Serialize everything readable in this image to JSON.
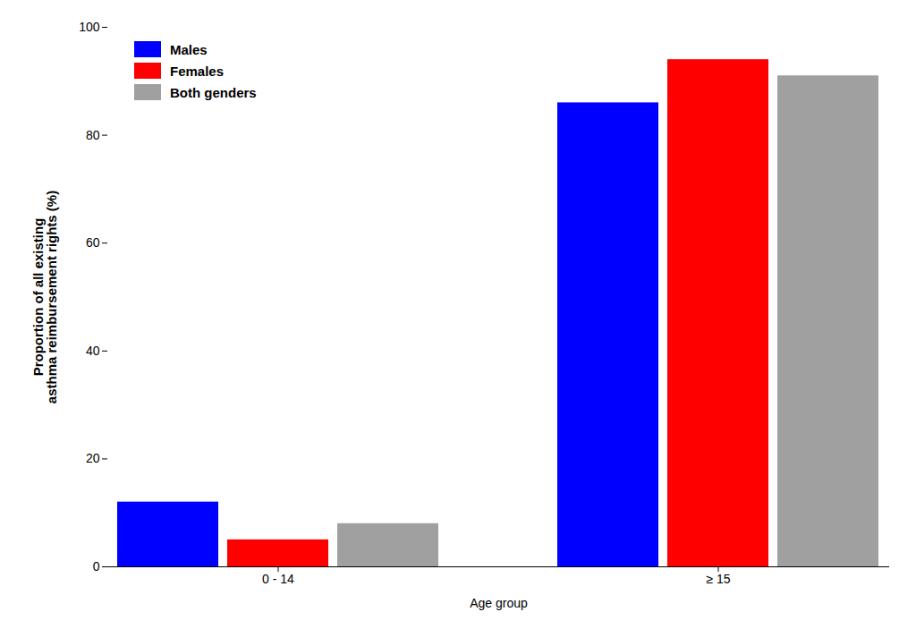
{
  "chart_data": {
    "type": "bar",
    "categories": [
      "0 - 14",
      "≥ 15"
    ],
    "series": [
      {
        "name": "Males",
        "color": "#0000FF",
        "values": [
          12,
          86
        ]
      },
      {
        "name": "Females",
        "color": "#FF0000",
        "values": [
          5,
          94
        ]
      },
      {
        "name": "Both genders",
        "color": "#A0A0A0",
        "values": [
          8,
          91
        ]
      }
    ],
    "xlabel": "Age group",
    "ylabel": "Proportion of all existing\nasthma reimbursement rights (%)",
    "ylim": [
      0,
      100
    ],
    "yticks": [
      0,
      20,
      40,
      60,
      80,
      100
    ],
    "grid": false,
    "legend": "upper left"
  }
}
